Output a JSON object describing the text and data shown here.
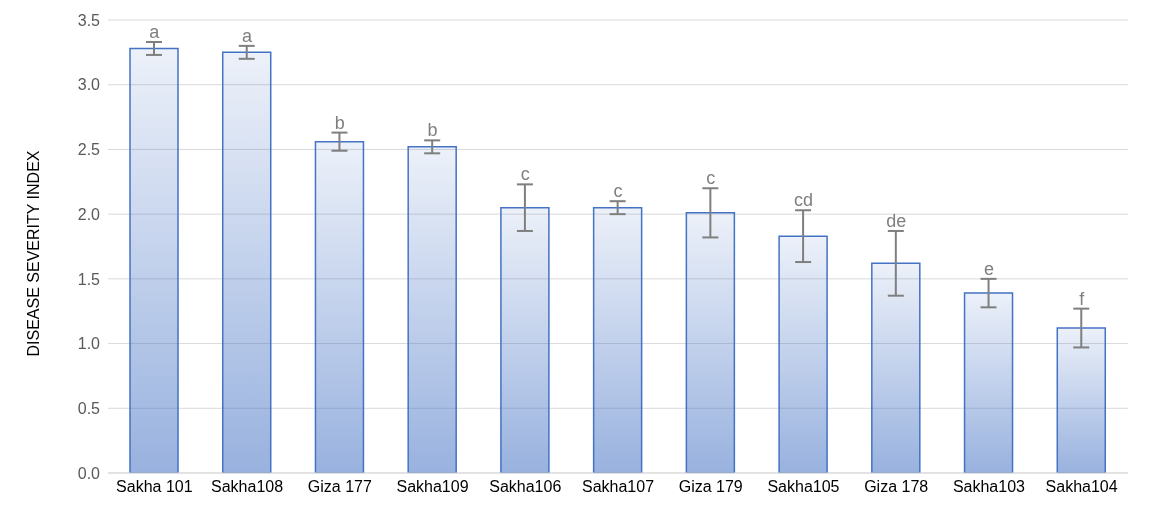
{
  "chart_data": {
    "type": "bar",
    "ylabel": "DISEASE SEVERITY INDEX",
    "categories": [
      "Sakha 101",
      "Sakha108",
      "Giza 177",
      "Sakha109",
      "Sakha106",
      "Sakha107",
      "Giza 179",
      "Sakha105",
      "Giza 178",
      "Sakha103",
      "Sakha104"
    ],
    "values": [
      3.28,
      3.25,
      2.56,
      2.52,
      2.05,
      2.05,
      2.01,
      1.83,
      1.62,
      1.39,
      1.12
    ],
    "errors": [
      0.05,
      0.05,
      0.07,
      0.05,
      0.18,
      0.05,
      0.19,
      0.2,
      0.25,
      0.11,
      0.15
    ],
    "color": "#4472c4",
    "ylim": [
      0,
      3.5
    ],
    "yticks": [
      {
        "value": 0,
        "label": "0.0"
      },
      {
        "value": 0.5,
        "label": "0.5"
      },
      {
        "value": 1,
        "label": "1.0"
      },
      {
        "value": 1.5,
        "label": "1.5"
      },
      {
        "value": 2,
        "label": "2.0"
      },
      {
        "value": 2.5,
        "label": "2.5"
      },
      {
        "value": 3,
        "label": "3.0"
      },
      {
        "value": 3.5,
        "label": "3.5"
      }
    ],
    "grid": "y",
    "legend": false,
    "annotations": [
      {
        "text": "a",
        "x": "Sakha 101",
        "y": 3.33
      },
      {
        "text": "a",
        "x": "Sakha108",
        "y": 3.3
      },
      {
        "text": "b",
        "x": "Giza 177",
        "y": 2.63
      },
      {
        "text": "b",
        "x": "Sakha109",
        "y": 2.57
      },
      {
        "text": "c",
        "x": "Sakha106",
        "y": 2.23
      },
      {
        "text": "c",
        "x": "Sakha107",
        "y": 2.1
      },
      {
        "text": "c",
        "x": "Giza 179",
        "y": 2.2
      },
      {
        "text": "cd",
        "x": "Sakha105",
        "y": 2.03
      },
      {
        "text": "de",
        "x": "Giza 178",
        "y": 1.87
      },
      {
        "text": "e",
        "x": "Sakha103",
        "y": 1.5
      },
      {
        "text": "f",
        "x": "Sakha104",
        "y": 1.27
      }
    ]
  }
}
